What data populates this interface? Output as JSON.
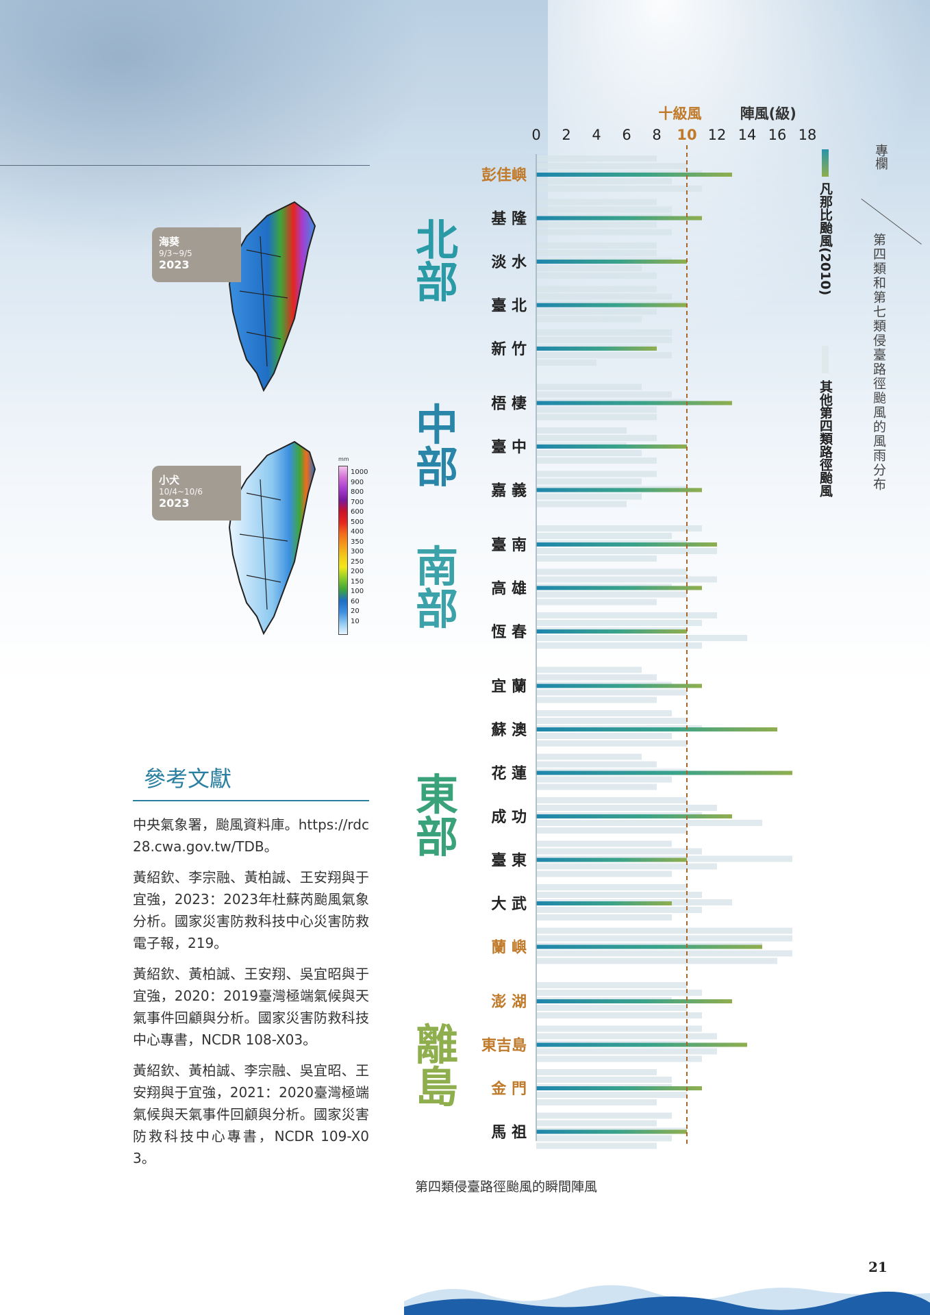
{
  "section_tag": "專欄",
  "side_title": "第四類和第七類侵臺路徑颱風的風雨分布",
  "page_number": "21",
  "maps": [
    {
      "typhoon": "海葵",
      "dates": "9/3~9/5",
      "year": "2023"
    },
    {
      "typhoon": "小犬",
      "dates": "10/4~10/6",
      "year": "2023"
    }
  ],
  "rain_legend": {
    "unit": "mm",
    "levels": [
      "1000",
      "900",
      "800",
      "700",
      "600",
      "500",
      "400",
      "350",
      "300",
      "250",
      "200",
      "150",
      "100",
      "60",
      "20",
      "10"
    ],
    "colors": [
      "#f2c6ec",
      "#d26fd6",
      "#a63ccf",
      "#7a1a9c",
      "#c8132a",
      "#e5251f",
      "#f26b1d",
      "#f59a1a",
      "#f2c819",
      "#f2e81b",
      "#8ccc2a",
      "#3ea63a",
      "#1f6ec5",
      "#3b8fe0",
      "#8cc8f0",
      "#e8f5ff"
    ]
  },
  "references": {
    "title": "參考文獻",
    "items": [
      "中央氣象署，颱風資料庫。https://rdc28.cwa.gov.tw/TDB。",
      "黃紹欽、李宗融、黃柏誠、王安翔與于宜強，2023：2023年杜蘇芮颱風氣象分析。國家災害防救科技中心災害防救電子報，219。",
      "黃紹欽、黃柏誠、王安翔、吳宜昭與于宜強，2020：2019臺灣極端氣候與天氣事件回顧與分析。國家災害防救科技中心專書，NCDR 108-X03。",
      "黃紹欽、黃柏誠、李宗融、吳宜昭、王安翔與于宜強，2021：2020臺灣極端氣候與天氣事件回顧與分析。國家災害防救科技中心專書，NCDR 109-X03。"
    ]
  },
  "chart_data": {
    "type": "bar",
    "title": "第四類侵臺路徑颱風的瞬間陣風",
    "xlabel": "陣風(級)",
    "threshold_label": "十級風",
    "threshold": 10,
    "xlim": [
      0,
      18
    ],
    "ticks": [
      "0",
      "2",
      "4",
      "6",
      "8",
      "10",
      "12",
      "14",
      "16",
      "18"
    ],
    "legend": [
      "凡那比颱風(2010)",
      "其他第四類路徑颱風"
    ],
    "regions": [
      {
        "name": "北部",
        "color": "#2a9aa6",
        "stations": [
          {
            "name": "彭佳嶼",
            "highlight": true,
            "value": 13,
            "others": [
              8,
              10,
              11,
              9,
              11
            ]
          },
          {
            "name": "基 隆",
            "highlight": false,
            "value": 11,
            "others": [
              8,
              9,
              9,
              8,
              9
            ]
          },
          {
            "name": "淡 水",
            "highlight": false,
            "value": 10,
            "others": [
              8,
              8,
              9,
              7,
              8
            ]
          },
          {
            "name": "臺 北",
            "highlight": false,
            "value": 10,
            "others": [
              8,
              9,
              10,
              8,
              7
            ]
          },
          {
            "name": "新 竹",
            "highlight": false,
            "value": 8,
            "others": [
              9,
              9,
              8,
              9,
              4
            ]
          }
        ]
      },
      {
        "name": "中部",
        "color": "#2a86a8",
        "stations": [
          {
            "name": "梧 棲",
            "highlight": false,
            "value": 13,
            "others": [
              7,
              9,
              10,
              8,
              8
            ]
          },
          {
            "name": "臺 中",
            "highlight": false,
            "value": 10,
            "others": [
              6,
              8,
              6,
              7,
              8
            ]
          },
          {
            "name": "嘉 義",
            "highlight": false,
            "value": 11,
            "others": [
              8,
              7,
              10,
              7,
              6
            ]
          }
        ]
      },
      {
        "name": "南部",
        "color": "#3aa2a8",
        "stations": [
          {
            "name": "臺 南",
            "highlight": false,
            "value": 12,
            "others": [
              11,
              9,
              10,
              12,
              8
            ]
          },
          {
            "name": "高 雄",
            "highlight": false,
            "value": 11,
            "others": [
              10,
              12,
              9,
              10,
              8
            ]
          },
          {
            "name": "恆 春",
            "highlight": false,
            "value": 10,
            "others": [
              12,
              11,
              10,
              14,
              11
            ]
          }
        ]
      },
      {
        "name": "東部",
        "color": "#3aa27a",
        "stations": [
          {
            "name": "宜 蘭",
            "highlight": false,
            "value": 11,
            "others": [
              7,
              8,
              9,
              10,
              8
            ]
          },
          {
            "name": "蘇 澳",
            "highlight": false,
            "value": 16,
            "others": [
              9,
              10,
              11,
              9,
              10
            ]
          },
          {
            "name": "花 蓮",
            "highlight": false,
            "value": 17,
            "others": [
              7,
              8,
              10,
              9,
              8
            ]
          },
          {
            "name": "成 功",
            "highlight": false,
            "value": 13,
            "others": [
              10,
              12,
              11,
              15,
              10
            ]
          },
          {
            "name": "臺 東",
            "highlight": false,
            "value": 10,
            "others": [
              9,
              11,
              17,
              12,
              9
            ]
          },
          {
            "name": "大 武",
            "highlight": false,
            "value": 9,
            "others": [
              10,
              11,
              13,
              11,
              9
            ]
          },
          {
            "name": "蘭 嶼",
            "highlight": true,
            "value": 15,
            "others": [
              17,
              17,
              15,
              17,
              16
            ]
          }
        ]
      },
      {
        "name": "離島",
        "color": "#8fae4e",
        "stations": [
          {
            "name": "澎 湖",
            "highlight": true,
            "value": 13,
            "others": [
              10,
              11,
              9,
              10,
              11
            ]
          },
          {
            "name": "東吉島",
            "highlight": true,
            "value": 14,
            "others": [
              11,
              12,
              10,
              12,
              11
            ]
          },
          {
            "name": "金 門",
            "highlight": true,
            "value": 11,
            "others": [
              8,
              9,
              9,
              10,
              8
            ]
          },
          {
            "name": "馬 祖",
            "highlight": false,
            "value": 10,
            "others": [
              9,
              8,
              10,
              9,
              8
            ]
          }
        ]
      }
    ]
  }
}
